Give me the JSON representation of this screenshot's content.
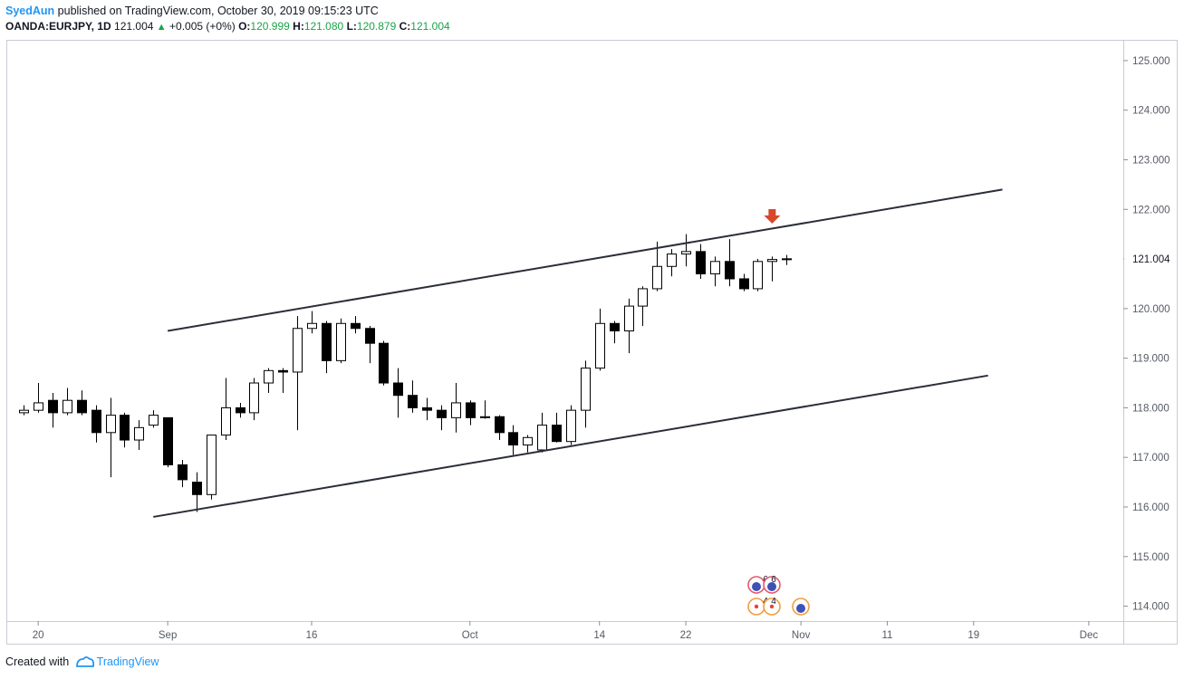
{
  "header": {
    "author": "SyedAun",
    "published_text": "published on TradingView.com, October 30, 2019 09:15:23 UTC"
  },
  "instrument": {
    "symbol_label": "OANDA:EURJPY, 1D",
    "last": "121.004",
    "change": "+0.005 (+0%)",
    "o_label": "O:",
    "o_value": "120.999",
    "h_label": "H:",
    "h_value": "121.080",
    "l_label": "L:",
    "l_value": "120.879",
    "c_label": "C:",
    "c_value": "121.004"
  },
  "footer": {
    "created_with": "Created with",
    "brand": "TradingView"
  },
  "colors": {
    "up_body": "#ffffff",
    "down_body": "#000000",
    "wick": "#000000",
    "channel_line": "#2a2e39",
    "arrow": "#d9472b",
    "price_badge": "#26a69a",
    "author_link": "#2196f3"
  },
  "markers": {
    "arrow_icon": "down-arrow-icon",
    "event_icons": [
      {
        "icon": "earnings-icon",
        "label": "6"
      },
      {
        "icon": "earnings-icon",
        "label": "6"
      },
      {
        "icon": "dividend-icon",
        "label": "4"
      },
      {
        "icon": "dividend-icon",
        "label": "4"
      },
      {
        "icon": "split-icon",
        "label": ""
      }
    ]
  },
  "chart_data": {
    "type": "candlestick",
    "y_axis": {
      "ticks": [
        "125.000",
        "124.000",
        "123.000",
        "122.000",
        "121.000",
        "120.000",
        "119.000",
        "118.000",
        "117.000",
        "116.000",
        "115.000",
        "114.000"
      ],
      "tick_values": [
        125,
        124,
        123,
        122,
        121,
        120,
        119,
        118,
        117,
        116,
        115,
        114
      ],
      "current_price_label": "121.004",
      "current_price": 121.004
    },
    "x_axis": {
      "ticks": [
        {
          "label": "20",
          "index": 1
        },
        {
          "label": "Sep",
          "index": 10
        },
        {
          "label": "16",
          "index": 20
        },
        {
          "label": "Oct",
          "index": 31
        },
        {
          "label": "14",
          "index": 40
        },
        {
          "label": "22",
          "index": 46
        },
        {
          "label": "Nov",
          "index": 54
        },
        {
          "label": "11",
          "index": 60
        },
        {
          "label": "19",
          "index": 66
        },
        {
          "label": "Dec",
          "index": 74
        }
      ],
      "index_range": [
        -1.15,
        76.4
      ]
    },
    "ylim": [
      113.7,
      125.4
    ],
    "candles": [
      {
        "o": 117.9,
        "h": 118.05,
        "l": 117.85,
        "c": 117.95
      },
      {
        "o": 117.95,
        "h": 118.5,
        "l": 117.9,
        "c": 118.1
      },
      {
        "o": 118.15,
        "h": 118.3,
        "l": 117.6,
        "c": 117.9
      },
      {
        "o": 117.9,
        "h": 118.4,
        "l": 117.85,
        "c": 118.15
      },
      {
        "o": 118.15,
        "h": 118.35,
        "l": 117.85,
        "c": 117.9
      },
      {
        "o": 117.95,
        "h": 118.05,
        "l": 117.3,
        "c": 117.5
      },
      {
        "o": 117.5,
        "h": 118.2,
        "l": 116.6,
        "c": 117.85
      },
      {
        "o": 117.85,
        "h": 117.9,
        "l": 117.2,
        "c": 117.35
      },
      {
        "o": 117.35,
        "h": 117.75,
        "l": 117.15,
        "c": 117.6
      },
      {
        "o": 117.65,
        "h": 117.95,
        "l": 117.6,
        "c": 117.85
      },
      {
        "o": 117.8,
        "h": 117.8,
        "l": 116.8,
        "c": 116.85
      },
      {
        "o": 116.85,
        "h": 116.95,
        "l": 116.4,
        "c": 116.55
      },
      {
        "o": 116.5,
        "h": 116.7,
        "l": 115.9,
        "c": 116.25
      },
      {
        "o": 116.25,
        "h": 117.45,
        "l": 116.15,
        "c": 117.45
      },
      {
        "o": 117.45,
        "h": 118.6,
        "l": 117.35,
        "c": 118.0
      },
      {
        "o": 118.0,
        "h": 118.1,
        "l": 117.8,
        "c": 117.9
      },
      {
        "o": 117.9,
        "h": 118.6,
        "l": 117.75,
        "c": 118.5
      },
      {
        "o": 118.5,
        "h": 118.8,
        "l": 118.3,
        "c": 118.75
      },
      {
        "o": 118.75,
        "h": 118.8,
        "l": 118.3,
        "c": 118.72
      },
      {
        "o": 118.72,
        "h": 119.85,
        "l": 117.55,
        "c": 119.6
      },
      {
        "o": 119.6,
        "h": 119.95,
        "l": 119.5,
        "c": 119.7
      },
      {
        "o": 119.7,
        "h": 119.75,
        "l": 118.7,
        "c": 118.95
      },
      {
        "o": 118.95,
        "h": 119.8,
        "l": 118.9,
        "c": 119.7
      },
      {
        "o": 119.7,
        "h": 119.85,
        "l": 119.5,
        "c": 119.6
      },
      {
        "o": 119.6,
        "h": 119.65,
        "l": 118.9,
        "c": 119.3
      },
      {
        "o": 119.3,
        "h": 119.35,
        "l": 118.45,
        "c": 118.5
      },
      {
        "o": 118.5,
        "h": 118.8,
        "l": 117.8,
        "c": 118.25
      },
      {
        "o": 118.25,
        "h": 118.55,
        "l": 117.9,
        "c": 118.0
      },
      {
        "o": 118.0,
        "h": 118.2,
        "l": 117.75,
        "c": 117.95
      },
      {
        "o": 117.95,
        "h": 118.05,
        "l": 117.55,
        "c": 117.8
      },
      {
        "o": 117.8,
        "h": 118.5,
        "l": 117.5,
        "c": 118.1
      },
      {
        "o": 118.1,
        "h": 118.15,
        "l": 117.65,
        "c": 117.8
      },
      {
        "o": 117.8,
        "h": 118.15,
        "l": 117.78,
        "c": 117.82
      },
      {
        "o": 117.82,
        "h": 117.85,
        "l": 117.35,
        "c": 117.5
      },
      {
        "o": 117.5,
        "h": 117.65,
        "l": 117.05,
        "c": 117.25
      },
      {
        "o": 117.25,
        "h": 117.45,
        "l": 117.1,
        "c": 117.4
      },
      {
        "o": 117.15,
        "h": 117.9,
        "l": 117.1,
        "c": 117.65
      },
      {
        "o": 117.65,
        "h": 117.9,
        "l": 117.3,
        "c": 117.32
      },
      {
        "o": 117.32,
        "h": 118.05,
        "l": 117.25,
        "c": 117.95
      },
      {
        "o": 117.95,
        "h": 118.95,
        "l": 117.6,
        "c": 118.8
      },
      {
        "o": 118.8,
        "h": 120.0,
        "l": 118.75,
        "c": 119.7
      },
      {
        "o": 119.7,
        "h": 119.75,
        "l": 119.3,
        "c": 119.55
      },
      {
        "o": 119.55,
        "h": 120.2,
        "l": 119.1,
        "c": 120.05
      },
      {
        "o": 120.05,
        "h": 120.45,
        "l": 119.65,
        "c": 120.4
      },
      {
        "o": 120.4,
        "h": 121.35,
        "l": 120.35,
        "c": 120.85
      },
      {
        "o": 120.85,
        "h": 121.2,
        "l": 120.65,
        "c": 121.1
      },
      {
        "o": 121.1,
        "h": 121.5,
        "l": 120.85,
        "c": 121.15
      },
      {
        "o": 121.15,
        "h": 121.3,
        "l": 120.6,
        "c": 120.7
      },
      {
        "o": 120.7,
        "h": 121.05,
        "l": 120.45,
        "c": 120.95
      },
      {
        "o": 120.95,
        "h": 121.4,
        "l": 120.45,
        "c": 120.6
      },
      {
        "o": 120.6,
        "h": 120.7,
        "l": 120.35,
        "c": 120.4
      },
      {
        "o": 120.4,
        "h": 121.0,
        "l": 120.35,
        "c": 120.95
      },
      {
        "o": 120.95,
        "h": 121.05,
        "l": 120.55,
        "c": 120.99
      },
      {
        "o": 120.999,
        "h": 121.08,
        "l": 120.879,
        "c": 121.004
      }
    ],
    "channel_lines": [
      {
        "from": {
          "index": 10.0,
          "price": 119.55
        },
        "to": {
          "index": 68.0,
          "price": 122.4
        }
      },
      {
        "from": {
          "index": 9.0,
          "price": 115.8
        },
        "to": {
          "index": 67.0,
          "price": 118.65
        }
      }
    ],
    "arrow_marker": {
      "index": 52.0,
      "price": 121.75
    }
  }
}
